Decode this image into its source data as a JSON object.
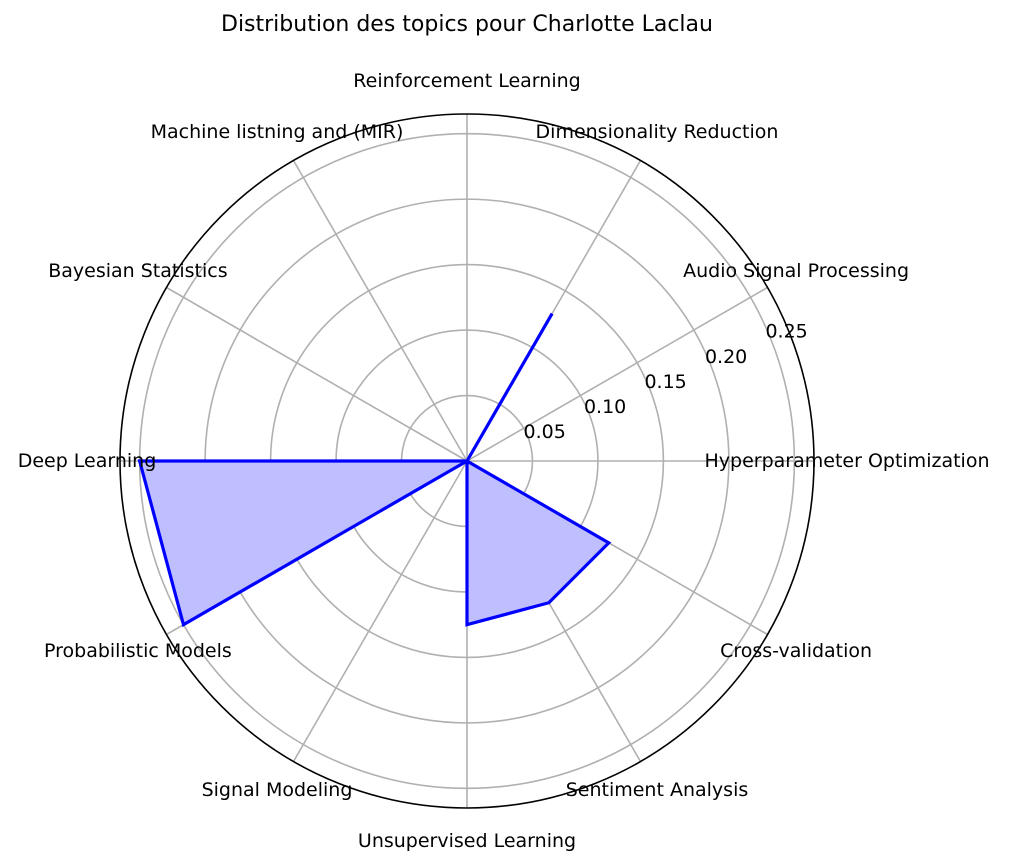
{
  "chart_data": {
    "type": "radar",
    "title": "Distribution des topics pour Charlotte Laclau",
    "categories": [
      "Hyperparameter Optimization",
      "Audio Signal Processing",
      "Dimensionality Reduction",
      "Reinforcement Learning",
      "Machine listning and (MIR)",
      "Bayesian Statistics",
      "Deep Learning",
      "Probabilistic Models",
      "Signal Modeling",
      "Unsupervised Learning",
      "Sentiment Analysis",
      "Cross-validation"
    ],
    "series": [
      {
        "values": [
          0.0,
          0.0,
          0.13,
          0.0,
          0.0,
          0.0,
          0.25,
          0.25,
          0.0,
          0.125,
          0.125,
          0.125
        ]
      }
    ],
    "rlim": [
      0,
      0.265
    ],
    "rticks": [
      0.05,
      0.1,
      0.15,
      0.2,
      0.25
    ],
    "rtick_labels": [
      "0.05",
      "0.10",
      "0.15",
      "0.20",
      "0.25"
    ],
    "grid": true,
    "colors": {
      "line": "#0000ff",
      "fill": "#bfbfff",
      "grid": "#b0b0b0",
      "frame": "#000000"
    }
  }
}
